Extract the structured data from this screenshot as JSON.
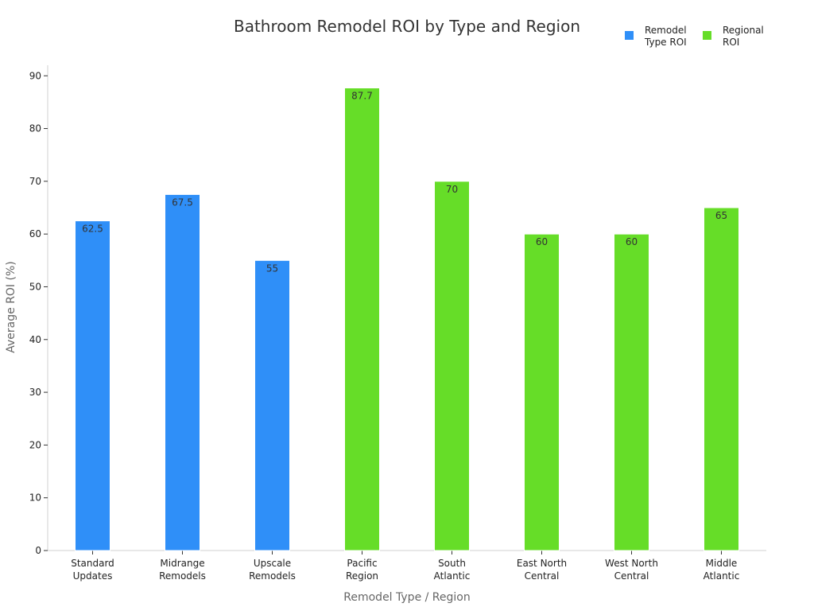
{
  "chart_data": {
    "type": "bar",
    "title": "Bathroom Remodel ROI by Type and Region",
    "xlabel": "Remodel Type / Region",
    "ylabel": "Average ROI (%)",
    "ylim": [
      0,
      92
    ],
    "yticks": [
      0,
      10,
      20,
      30,
      40,
      50,
      60,
      70,
      80,
      90
    ],
    "grid": false,
    "legend_position": "top-right",
    "categories": [
      [
        "Standard",
        "Updates"
      ],
      [
        "Midrange",
        "Remodels"
      ],
      [
        "Upscale",
        "Remodels"
      ],
      [
        "Pacific",
        "Region"
      ],
      [
        "South",
        "Atlantic"
      ],
      [
        "East North",
        "Central"
      ],
      [
        "West North",
        "Central"
      ],
      [
        "Middle",
        "Atlantic"
      ]
    ],
    "series": [
      {
        "name": [
          "Remodel",
          "Type ROI"
        ],
        "color": "#2f8ff8",
        "values": [
          62.5,
          67.5,
          55,
          null,
          null,
          null,
          null,
          null
        ],
        "labels": [
          "62.5",
          "67.5",
          "55",
          null,
          null,
          null,
          null,
          null
        ]
      },
      {
        "name": [
          "Regional",
          "ROI"
        ],
        "color": "#66dd28",
        "values": [
          null,
          null,
          null,
          87.7,
          70,
          60,
          60,
          65
        ],
        "labels": [
          null,
          null,
          null,
          "87.7",
          "70",
          "60",
          "60",
          "65"
        ]
      }
    ]
  }
}
